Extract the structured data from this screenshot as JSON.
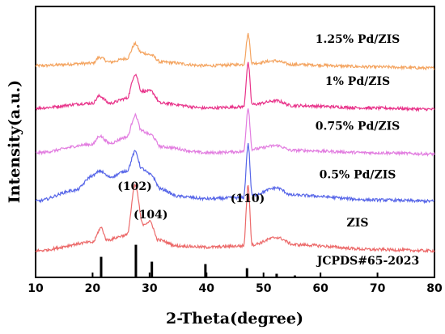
{
  "chart_data": {
    "type": "line",
    "xlabel": "2-Theta(degree)",
    "ylabel": "Intensity(a.u.)",
    "xlim": [
      10,
      80
    ],
    "xticks": [
      10,
      20,
      30,
      40,
      50,
      60,
      70,
      80
    ],
    "yticks_shown": false,
    "grid": false,
    "series": [
      {
        "name": "1.25% Pd/ZIS",
        "color": "#f4a460",
        "baseline": 8.6,
        "points": [
          [
            10,
            0.15
          ],
          [
            20,
            0.25
          ],
          [
            21.2,
            0.5
          ],
          [
            23,
            0.3
          ],
          [
            26,
            0.45
          ],
          [
            27.5,
            1.05
          ],
          [
            28.5,
            0.7
          ],
          [
            30.2,
            0.6
          ],
          [
            32,
            0.3
          ],
          [
            40,
            0.15
          ],
          [
            46.5,
            0.2
          ],
          [
            47.3,
            1.45
          ],
          [
            48,
            0.25
          ],
          [
            52,
            0.35
          ],
          [
            55,
            0.2
          ],
          [
            70,
            0.1
          ],
          [
            80,
            0.05
          ]
        ]
      },
      {
        "name": "1% Pd/ZIS",
        "color": "#e8338a",
        "baseline": 6.85,
        "points": [
          [
            10,
            0.15
          ],
          [
            20,
            0.35
          ],
          [
            21.2,
            0.65
          ],
          [
            23,
            0.35
          ],
          [
            26,
            0.55
          ],
          [
            27.5,
            1.55
          ],
          [
            28.6,
            0.85
          ],
          [
            30.2,
            0.85
          ],
          [
            32,
            0.35
          ],
          [
            40,
            0.15
          ],
          [
            46.5,
            0.2
          ],
          [
            47.3,
            2.0
          ],
          [
            48,
            0.3
          ],
          [
            52.3,
            0.45
          ],
          [
            55,
            0.25
          ],
          [
            70,
            0.15
          ],
          [
            80,
            0.1
          ]
        ]
      },
      {
        "name": "0.75% Pd/ZIS",
        "color": "#e27de0",
        "baseline": 5.0,
        "points": [
          [
            10,
            0.15
          ],
          [
            20,
            0.5
          ],
          [
            21.2,
            0.85
          ],
          [
            23,
            0.55
          ],
          [
            26,
            0.8
          ],
          [
            27.5,
            1.7
          ],
          [
            28.6,
            1.05
          ],
          [
            30.2,
            0.9
          ],
          [
            32,
            0.4
          ],
          [
            40,
            0.15
          ],
          [
            46.5,
            0.2
          ],
          [
            47.3,
            2.0
          ],
          [
            48,
            0.3
          ],
          [
            52.3,
            0.45
          ],
          [
            55,
            0.25
          ],
          [
            70,
            0.15
          ],
          [
            80,
            0.1
          ]
        ]
      },
      {
        "name": "0.5% Pd/ZIS",
        "color": "#5766e8",
        "baseline": 3.0,
        "points": [
          [
            10,
            0.15
          ],
          [
            17,
            0.6
          ],
          [
            20,
            1.2
          ],
          [
            21.3,
            1.4
          ],
          [
            23,
            1.15
          ],
          [
            26,
            1.4
          ],
          [
            27.5,
            2.2
          ],
          [
            28.6,
            1.5
          ],
          [
            30.2,
            1.25
          ],
          [
            32,
            0.65
          ],
          [
            35,
            0.35
          ],
          [
            40,
            0.25
          ],
          [
            46.5,
            0.3
          ],
          [
            47.3,
            2.5
          ],
          [
            48,
            0.4
          ],
          [
            52.3,
            0.7
          ],
          [
            55,
            0.4
          ],
          [
            70,
            0.2
          ],
          [
            80,
            0.15
          ]
        ]
      },
      {
        "name": "ZIS",
        "color": "#ec6a6a",
        "baseline": 1.0,
        "points": [
          [
            10,
            0.1
          ],
          [
            20,
            0.45
          ],
          [
            21.5,
            1.05
          ],
          [
            22.5,
            0.55
          ],
          [
            26,
            0.75
          ],
          [
            27.5,
            2.8
          ],
          [
            28.8,
            1.2
          ],
          [
            30.1,
            1.3
          ],
          [
            31.5,
            0.55
          ],
          [
            35,
            0.3
          ],
          [
            40,
            0.25
          ],
          [
            46.5,
            0.3
          ],
          [
            47.3,
            2.8
          ],
          [
            48,
            0.35
          ],
          [
            52.3,
            0.65
          ],
          [
            55.5,
            0.35
          ],
          [
            70,
            0.15
          ],
          [
            80,
            0.1
          ]
        ]
      }
    ],
    "reference": {
      "name": "JCPDS#65-2023",
      "peaks": [
        [
          21.5,
          0.85
        ],
        [
          27.6,
          1.35
        ],
        [
          30.4,
          0.65
        ],
        [
          39.8,
          0.55
        ],
        [
          47.1,
          0.38
        ],
        [
          52.3,
          0.15
        ],
        [
          55.5,
          0.08
        ]
      ]
    },
    "annotations": [
      {
        "text": "(102)",
        "x": 27.4
      },
      {
        "text": "(104)",
        "x": 30.2
      },
      {
        "text": "(110)",
        "x": 47.2
      }
    ]
  }
}
